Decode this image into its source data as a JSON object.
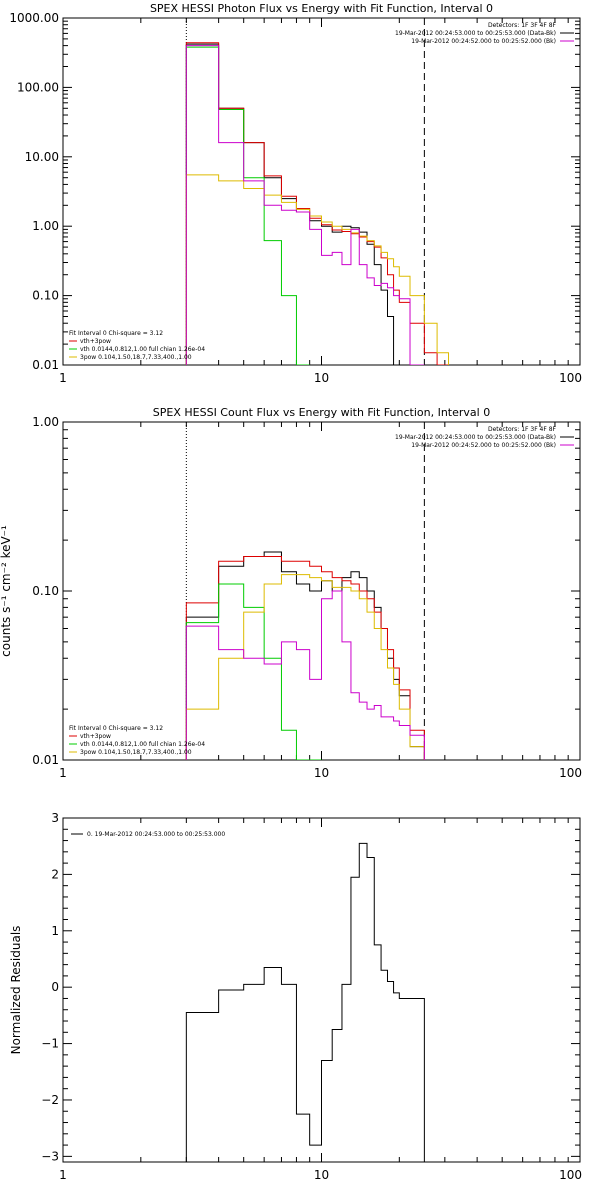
{
  "chart_data": [
    {
      "type": "line",
      "title": "SPEX HESSI Photon Flux vs Energy with Fit Function, Interval 0",
      "xlabel": "",
      "ylabel": "",
      "xscale": "log",
      "yscale": "log",
      "xlim": [
        1,
        100
      ],
      "ylim": [
        0.01,
        1000
      ],
      "x_tick_labels": [
        "1",
        "10",
        "100"
      ],
      "y_tick_labels": [
        "0.01",
        "0.10",
        "1.00",
        "10.00",
        "100.00",
        "1000.00"
      ],
      "x_tick_values": [
        1,
        10,
        100
      ],
      "y_tick_values": [
        0.01,
        0.1,
        1,
        10,
        100,
        1000
      ],
      "legend_top_right": [
        {
          "text": "Detectors: 1F 3F 4F 8F",
          "color": "#000000"
        },
        {
          "text": "19-Mar-2012 00:24:53.000 to 00:25:53.000 (Data-Bk)",
          "color": "#000000"
        },
        {
          "text": "19-Mar-2012 00:24:52.000 to 00:25:52.000 (Bk)",
          "color": "#cc00cc"
        }
      ],
      "legend_bottom_left": [
        {
          "text": "Fit Interval 0   Chi-square = 3.12",
          "color": "#000000"
        },
        {
          "text": "vth+3pow",
          "color": "#dd0000"
        },
        {
          "text": "vth 0.0144,0.812,1.00  full chian 1.26e-04",
          "color": "#00cc00"
        },
        {
          "text": "3pow 0.104,1.50,18.7,7.33,400.,1.00",
          "color": "#ddbb00"
        }
      ],
      "vlines": [
        {
          "x": 3,
          "style": "dotted"
        },
        {
          "x": 25,
          "style": "dashed"
        }
      ],
      "bin_edges": [
        3,
        4,
        5,
        6,
        7,
        8,
        9,
        10,
        11,
        12,
        13,
        14,
        15,
        16,
        17,
        18,
        19,
        20,
        22,
        25,
        28,
        31
      ],
      "series": [
        {
          "color": "#000000",
          "values": [
            420,
            50,
            16,
            5,
            2.5,
            1.6,
            1.2,
            1.0,
            0.82,
            1.0,
            0.95,
            0.82,
            0.55,
            0.28,
            0.12,
            0.05
          ]
        },
        {
          "color": "#dd0000",
          "values": [
            440,
            50,
            16,
            5.3,
            2.7,
            1.8,
            1.3,
            1.05,
            0.88,
            0.84,
            0.78,
            0.7,
            0.6,
            0.5,
            0.35,
            0.2,
            0.12,
            0.08,
            0.04,
            0.015,
            0.01
          ]
        },
        {
          "color": "#00cc00",
          "values": [
            380,
            48,
            5,
            0.62,
            0.1,
            0.01
          ]
        },
        {
          "color": "#ddbb00",
          "values": [
            5.5,
            4.5,
            3.5,
            2.8,
            2.2,
            1.75,
            1.4,
            1.15,
            1.0,
            0.9,
            0.8,
            0.72,
            0.62,
            0.52,
            0.42,
            0.34,
            0.26,
            0.19,
            0.1,
            0.04,
            0.015,
            0.008
          ]
        },
        {
          "color": "#cc00cc",
          "values": [
            400,
            16,
            4.5,
            2.0,
            1.7,
            1.6,
            0.9,
            0.38,
            0.42,
            0.28,
            0.9,
            0.28,
            0.18,
            0.14,
            0.15,
            0.13,
            0.1,
            0.09,
            0.002
          ]
        }
      ]
    },
    {
      "type": "line",
      "title": "SPEX HESSI Count Flux vs Energy with Fit Function, Interval 0",
      "xlabel": "",
      "ylabel": "counts s⁻¹ cm⁻² keV⁻¹",
      "xscale": "log",
      "yscale": "log",
      "xlim": [
        1,
        100
      ],
      "ylim": [
        0.01,
        1
      ],
      "x_tick_labels": [
        "1",
        "10",
        "100"
      ],
      "y_tick_labels": [
        "0.01",
        "0.10",
        "1.00"
      ],
      "x_tick_values": [
        1,
        10,
        100
      ],
      "y_tick_values": [
        0.01,
        0.1,
        1
      ],
      "legend_top_right": [
        {
          "text": "Detectors: 1F 3F 4F 8F",
          "color": "#000000"
        },
        {
          "text": "19-Mar-2012 00:24:53.000 to 00:25:53.000 (Data-Bk)",
          "color": "#000000"
        },
        {
          "text": "19-Mar-2012 00:24:52.000 to 00:25:52.000 (Bk)",
          "color": "#cc00cc"
        }
      ],
      "legend_bottom_left": [
        {
          "text": "Fit Interval 0   Chi-square = 3.12",
          "color": "#000000"
        },
        {
          "text": "vth+3pow",
          "color": "#dd0000"
        },
        {
          "text": "vth 0.0144,0.812,1.00  full chian 1.26e-04",
          "color": "#00cc00"
        },
        {
          "text": "3pow 0.104,1.50,18.7,7.33,400.,1.00",
          "color": "#ddbb00"
        }
      ],
      "vlines": [
        {
          "x": 3,
          "style": "dotted"
        },
        {
          "x": 25,
          "style": "dashed"
        }
      ],
      "bin_edges": [
        3,
        4,
        5,
        6,
        7,
        8,
        9,
        10,
        11,
        12,
        13,
        14,
        15,
        16,
        17,
        18,
        19,
        20,
        22,
        25
      ],
      "series": [
        {
          "color": "#000000",
          "values": [
            0.07,
            0.14,
            0.16,
            0.17,
            0.13,
            0.11,
            0.1,
            0.115,
            0.1,
            0.12,
            0.13,
            0.12,
            0.1,
            0.08,
            0.06,
            0.04,
            0.03,
            0.024,
            0.012
          ]
        },
        {
          "color": "#dd0000",
          "values": [
            0.085,
            0.15,
            0.16,
            0.16,
            0.15,
            0.15,
            0.14,
            0.13,
            0.12,
            0.115,
            0.11,
            0.1,
            0.09,
            0.075,
            0.06,
            0.045,
            0.035,
            0.026,
            0.015
          ]
        },
        {
          "color": "#00cc00",
          "values": [
            0.065,
            0.11,
            0.08,
            0.04,
            0.015,
            0.01,
            0.008
          ]
        },
        {
          "color": "#ddbb00",
          "values": [
            0.02,
            0.04,
            0.075,
            0.11,
            0.125,
            0.125,
            0.12,
            0.115,
            0.105,
            0.105,
            0.1,
            0.09,
            0.075,
            0.06,
            0.045,
            0.035,
            0.028,
            0.02,
            0.012
          ]
        },
        {
          "color": "#cc00cc",
          "values": [
            0.062,
            0.045,
            0.04,
            0.037,
            0.05,
            0.045,
            0.03,
            0.09,
            0.1,
            0.05,
            0.025,
            0.022,
            0.02,
            0.021,
            0.018,
            0.018,
            0.017,
            0.016,
            0.014
          ]
        }
      ]
    },
    {
      "type": "line",
      "title": "",
      "xlabel": "",
      "ylabel": "Normalized Residuals",
      "xscale": "log",
      "yscale": "linear",
      "xlim": [
        1,
        100
      ],
      "ylim": [
        -3.1,
        3
      ],
      "x_tick_labels": [
        "1",
        "10",
        "100"
      ],
      "y_tick_labels": [
        "3",
        "2",
        "1",
        "0",
        "−1",
        "−2",
        "−3"
      ],
      "x_tick_values": [
        1,
        10,
        100
      ],
      "y_tick_values": [
        3,
        2,
        1,
        0,
        -1,
        -2,
        -3
      ],
      "legend_top_left": [
        {
          "text": "0. 19-Mar-2012 00:24:53.000 to 00:25:53.000",
          "color": "#000000"
        }
      ],
      "bin_edges": [
        3,
        4,
        5,
        6,
        7,
        8,
        9,
        10,
        11,
        12,
        13,
        14,
        15,
        16,
        17,
        18,
        19,
        20,
        22,
        25
      ],
      "series": [
        {
          "color": "#000000",
          "values": [
            -0.45,
            -0.05,
            0.05,
            0.35,
            0.05,
            -2.25,
            -2.8,
            -1.3,
            -0.75,
            0.05,
            1.95,
            2.55,
            2.3,
            0.75,
            0.3,
            0.1,
            -0.1,
            -0.2,
            -0.2
          ]
        }
      ]
    }
  ]
}
